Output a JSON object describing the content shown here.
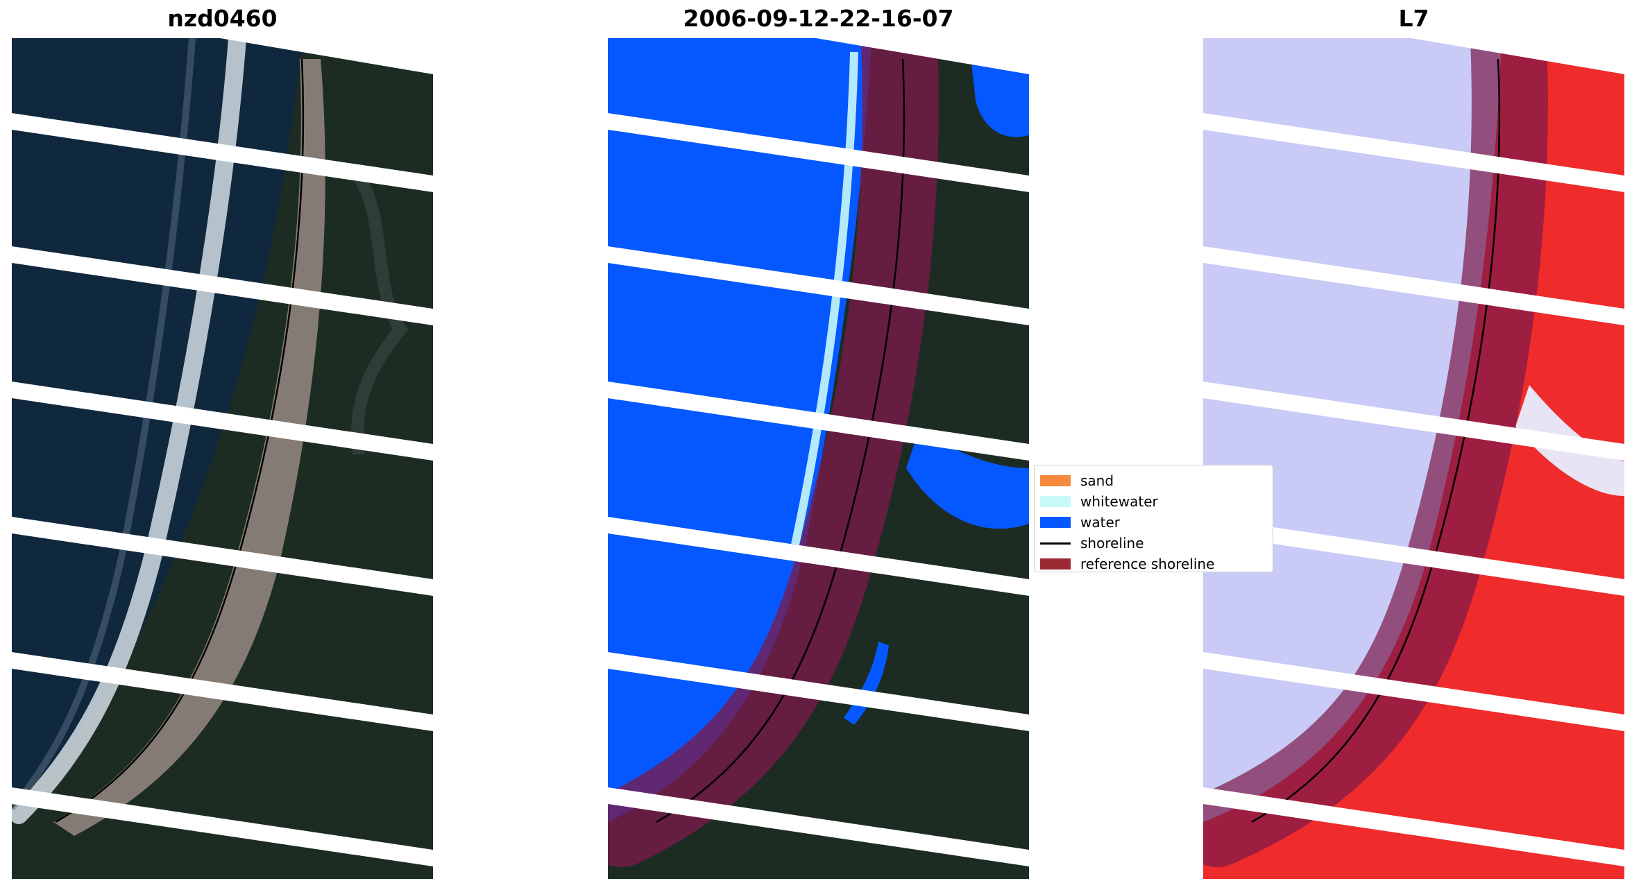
{
  "panels": [
    {
      "title": "nzd0460"
    },
    {
      "title": "2006-09-12-22-16-07"
    },
    {
      "title": "L7"
    }
  ],
  "legend": [
    {
      "label": "sand",
      "color": "#f58a3c",
      "kind": "patch"
    },
    {
      "label": "whitewater",
      "color": "#c8fafa",
      "kind": "patch"
    },
    {
      "label": "water",
      "color": "#0558ff",
      "kind": "patch"
    },
    {
      "label": "shoreline",
      "color": "#000000",
      "kind": "line"
    },
    {
      "label": "reference shoreline",
      "color": "#9b2a35",
      "kind": "patch"
    }
  ],
  "colors": {
    "ocean": "#10283d",
    "land": "#1c2c22",
    "beach": "#847c74",
    "surf": "#d4dde4",
    "water_class": "#0558ff",
    "reference_buffer": "#7a1a4a",
    "index_negative": "#c9cbf6",
    "index_positive": "#ef2b2b",
    "nodata_stripe": "#ffffff"
  }
}
